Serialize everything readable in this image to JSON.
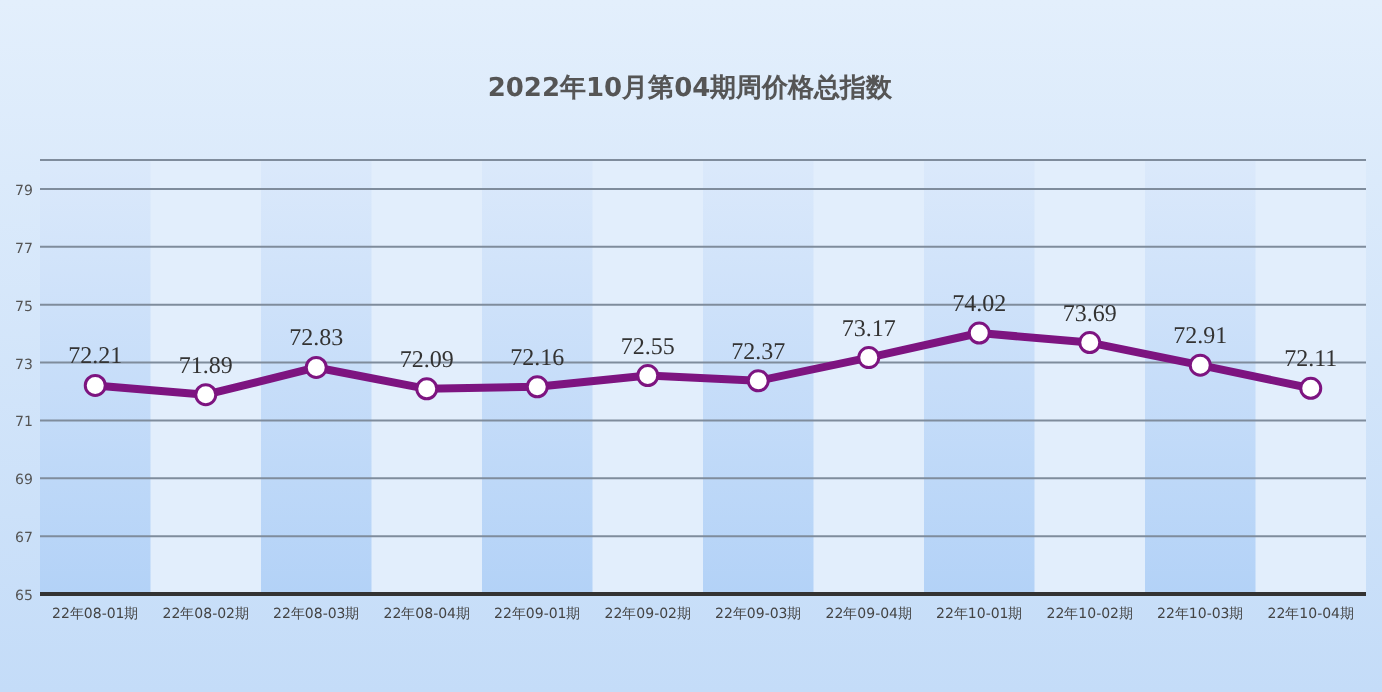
{
  "chart_data": {
    "type": "line",
    "title": "2022年10月第04期周价格总指数",
    "categories": [
      "22年08-01期",
      "22年08-02期",
      "22年08-03期",
      "22年08-04期",
      "22年09-01期",
      "22年09-02期",
      "22年09-03期",
      "22年09-04期",
      "22年10-01期",
      "22年10-02期",
      "22年10-03期",
      "22年10-04期"
    ],
    "series": [
      {
        "color": "#7d1480",
        "values": [
          72.21,
          71.89,
          72.83,
          72.09,
          72.16,
          72.55,
          72.37,
          73.17,
          74.02,
          73.69,
          72.91,
          72.11
        ]
      }
    ],
    "ylim": [
      65,
      80
    ],
    "yticks": [
      65,
      67,
      69,
      71,
      73,
      75,
      77,
      79
    ],
    "bands": [
      {
        "axis": "x",
        "from": "22年08-01期",
        "to": "22年08-01期",
        "color": "#b3d2f7"
      },
      {
        "axis": "x",
        "from": "22年08-03期",
        "to": "22年08-03期",
        "color": "#b3d2f7"
      },
      {
        "axis": "x",
        "from": "22年09-01期",
        "to": "22年09-01期",
        "color": "#b3d2f7"
      },
      {
        "axis": "x",
        "from": "22年09-03期",
        "to": "22年09-03期",
        "color": "#b3d2f7"
      },
      {
        "axis": "x",
        "from": "22年10-01期",
        "to": "22年10-01期",
        "color": "#b3d2f7"
      },
      {
        "axis": "x",
        "from": "22年10-03期",
        "to": "22年10-03期",
        "color": "#b3d2f7"
      }
    ],
    "grid": "y",
    "marker": "circle",
    "line_style": "solid",
    "data_labels": true
  }
}
